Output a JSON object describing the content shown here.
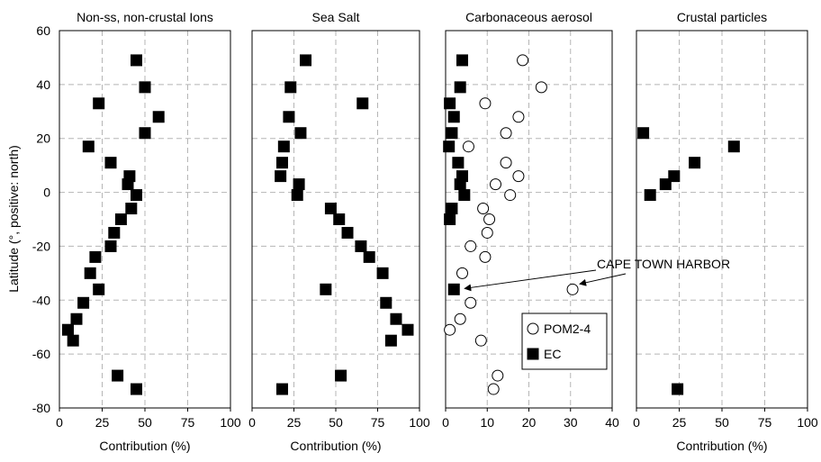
{
  "figure": {
    "ylabel": "Latitude (°, positive: north)",
    "ylim": [
      -80,
      60
    ],
    "yticks": [
      -80,
      -60,
      -40,
      -20,
      0,
      20,
      40,
      60
    ]
  },
  "chart_data": [
    {
      "type": "scatter",
      "title": "Non-ss, non-crustal Ions",
      "xlabel": "Contribution (%)",
      "xlim": [
        0,
        100
      ],
      "xticks": [
        0,
        25,
        50,
        75,
        100
      ],
      "grid": true,
      "series": [
        {
          "marker": "filled-square",
          "points": [
            [
              45,
              49
            ],
            [
              50,
              39
            ],
            [
              23,
              33
            ],
            [
              58,
              28
            ],
            [
              50,
              22
            ],
            [
              17,
              17
            ],
            [
              30,
              11
            ],
            [
              41,
              6
            ],
            [
              40,
              3
            ],
            [
              45,
              -1
            ],
            [
              42,
              -6
            ],
            [
              36,
              -10
            ],
            [
              32,
              -15
            ],
            [
              30,
              -20
            ],
            [
              21,
              -24
            ],
            [
              18,
              -30
            ],
            [
              23,
              -36
            ],
            [
              14,
              -41
            ],
            [
              10,
              -47
            ],
            [
              5,
              -51
            ],
            [
              8,
              -55
            ],
            [
              34,
              -68
            ],
            [
              45,
              -73
            ]
          ]
        }
      ]
    },
    {
      "type": "scatter",
      "title": "Sea Salt",
      "xlabel": "Contribution (%)",
      "xlim": [
        0,
        100
      ],
      "xticks": [
        0,
        25,
        50,
        75,
        100
      ],
      "grid": true,
      "series": [
        {
          "marker": "filled-square",
          "points": [
            [
              32,
              49
            ],
            [
              23,
              39
            ],
            [
              66,
              33
            ],
            [
              22,
              28
            ],
            [
              29,
              22
            ],
            [
              19,
              17
            ],
            [
              18,
              11
            ],
            [
              17,
              6
            ],
            [
              28,
              3
            ],
            [
              27,
              -1
            ],
            [
              47,
              -6
            ],
            [
              52,
              -10
            ],
            [
              57,
              -15
            ],
            [
              65,
              -20
            ],
            [
              70,
              -24
            ],
            [
              78,
              -30
            ],
            [
              44,
              -36
            ],
            [
              80,
              -41
            ],
            [
              86,
              -47
            ],
            [
              93,
              -51
            ],
            [
              83,
              -55
            ],
            [
              53,
              -68
            ],
            [
              18,
              -73
            ]
          ]
        }
      ]
    },
    {
      "type": "scatter",
      "title": "Carbonaceous aerosol",
      "xlabel": "",
      "xlim": [
        0,
        40
      ],
      "xticks": [
        0,
        10,
        20,
        30,
        40
      ],
      "grid": true,
      "legend": "lower-middle",
      "annotation": {
        "text": "CAPE TOWN HARBOR",
        "targets": [
          [
            2,
            -36
          ],
          [
            30.5,
            -36
          ]
        ]
      },
      "series": [
        {
          "name": "POM2-4",
          "marker": "open-circle",
          "points": [
            [
              18.5,
              49
            ],
            [
              23,
              39
            ],
            [
              9.5,
              33
            ],
            [
              17.5,
              28
            ],
            [
              14.5,
              22
            ],
            [
              5.5,
              17
            ],
            [
              14.5,
              11
            ],
            [
              17.5,
              6
            ],
            [
              12,
              3
            ],
            [
              15.5,
              -1
            ],
            [
              9,
              -6
            ],
            [
              10.5,
              -10
            ],
            [
              10,
              -15
            ],
            [
              6,
              -20
            ],
            [
              9.5,
              -24
            ],
            [
              4,
              -30
            ],
            [
              30.5,
              -36
            ],
            [
              6,
              -41
            ],
            [
              3.5,
              -47
            ],
            [
              1,
              -51
            ],
            [
              8.5,
              -55
            ],
            [
              12.5,
              -68
            ],
            [
              11.5,
              -73
            ]
          ]
        },
        {
          "name": "EC",
          "marker": "filled-square",
          "points": [
            [
              4,
              49
            ],
            [
              3.5,
              39
            ],
            [
              1,
              33
            ],
            [
              2,
              28
            ],
            [
              1.5,
              22
            ],
            [
              0.8,
              17
            ],
            [
              3,
              11
            ],
            [
              4,
              6
            ],
            [
              3.5,
              3
            ],
            [
              4.5,
              -1
            ],
            [
              1.5,
              -6
            ],
            [
              1,
              -10
            ],
            [
              2,
              -36
            ]
          ]
        }
      ]
    },
    {
      "type": "scatter",
      "title": "Crustal particles",
      "xlabel": "Contribution (%)",
      "xlim": [
        0,
        100
      ],
      "xticks": [
        0,
        25,
        50,
        75,
        100
      ],
      "grid": true,
      "series": [
        {
          "marker": "filled-square",
          "points": [
            [
              4,
              22
            ],
            [
              57,
              17
            ],
            [
              34,
              11
            ],
            [
              22,
              6
            ],
            [
              17,
              3
            ],
            [
              8,
              -1
            ],
            [
              24,
              -73
            ]
          ]
        }
      ]
    }
  ]
}
